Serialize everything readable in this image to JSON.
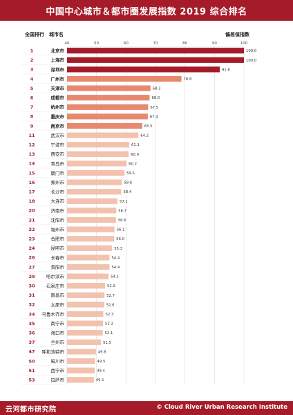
{
  "header": {
    "title": "中国中心城市＆都市圈发展指数 2019 综合排名"
  },
  "columns": {
    "rank_label": "全国排行",
    "city_label": "城市名",
    "value_label": "偏差值指数"
  },
  "footer": {
    "org": "云河都市研究院",
    "copyright": "© Cloud River Urban Research Institute"
  },
  "chart_data": {
    "type": "bar",
    "orientation": "horizontal",
    "xlim": [
      40,
      100
    ],
    "xticks": [
      "40",
      "50",
      "60",
      "70",
      "80",
      "90",
      "100"
    ],
    "grid": true,
    "value_labels": true,
    "tiers": [
      {
        "count": 3,
        "color": "#a61b29"
      },
      {
        "count": 6,
        "color": "#e6896e"
      },
      {
        "count": 30,
        "color": "#f3c2ae"
      }
    ],
    "ranks": [
      "1",
      "2",
      "3",
      "4",
      "5",
      "6",
      "7",
      "8",
      "9",
      "11",
      "12",
      "13",
      "14",
      "15",
      "16",
      "17",
      "18",
      "20",
      "21",
      "22",
      "23",
      "24",
      "26",
      "27",
      "29",
      "30",
      "31",
      "32",
      "34",
      "35",
      "36",
      "37",
      "47",
      "50",
      "51",
      "53"
    ],
    "categories": [
      "北京市",
      "上海市",
      "深圳市",
      "广州市",
      "天津市",
      "成都市",
      "杭州市",
      "重庆市",
      "南京市",
      "武汉市",
      "宁波市",
      "西安市",
      "青岛市",
      "厦门市",
      "郑州市",
      "长沙市",
      "大连市",
      "济南市",
      "沈阳市",
      "福州市",
      "合肥市",
      "昆明市",
      "长春市",
      "贵阳市",
      "哈尔滨市",
      "石家庄市",
      "南昌市",
      "太原市",
      "乌鲁木齐市",
      "南宁市",
      "海口市",
      "兰州市",
      "呼和浩特市",
      "银川市",
      "西宁市",
      "拉萨市"
    ],
    "values": [
      100.0,
      100.0,
      91.8,
      78.8,
      68.3,
      68.0,
      67.5,
      67.4,
      65.5,
      64.2,
      61.1,
      60.9,
      60.2,
      59.5,
      58.6,
      58.4,
      57.1,
      56.7,
      56.6,
      56.1,
      56.0,
      55.3,
      54.4,
      54.4,
      54.1,
      52.9,
      52.7,
      52.6,
      52.3,
      52.2,
      52.1,
      51.5,
      49.8,
      49.5,
      49.4,
      49.1
    ]
  }
}
